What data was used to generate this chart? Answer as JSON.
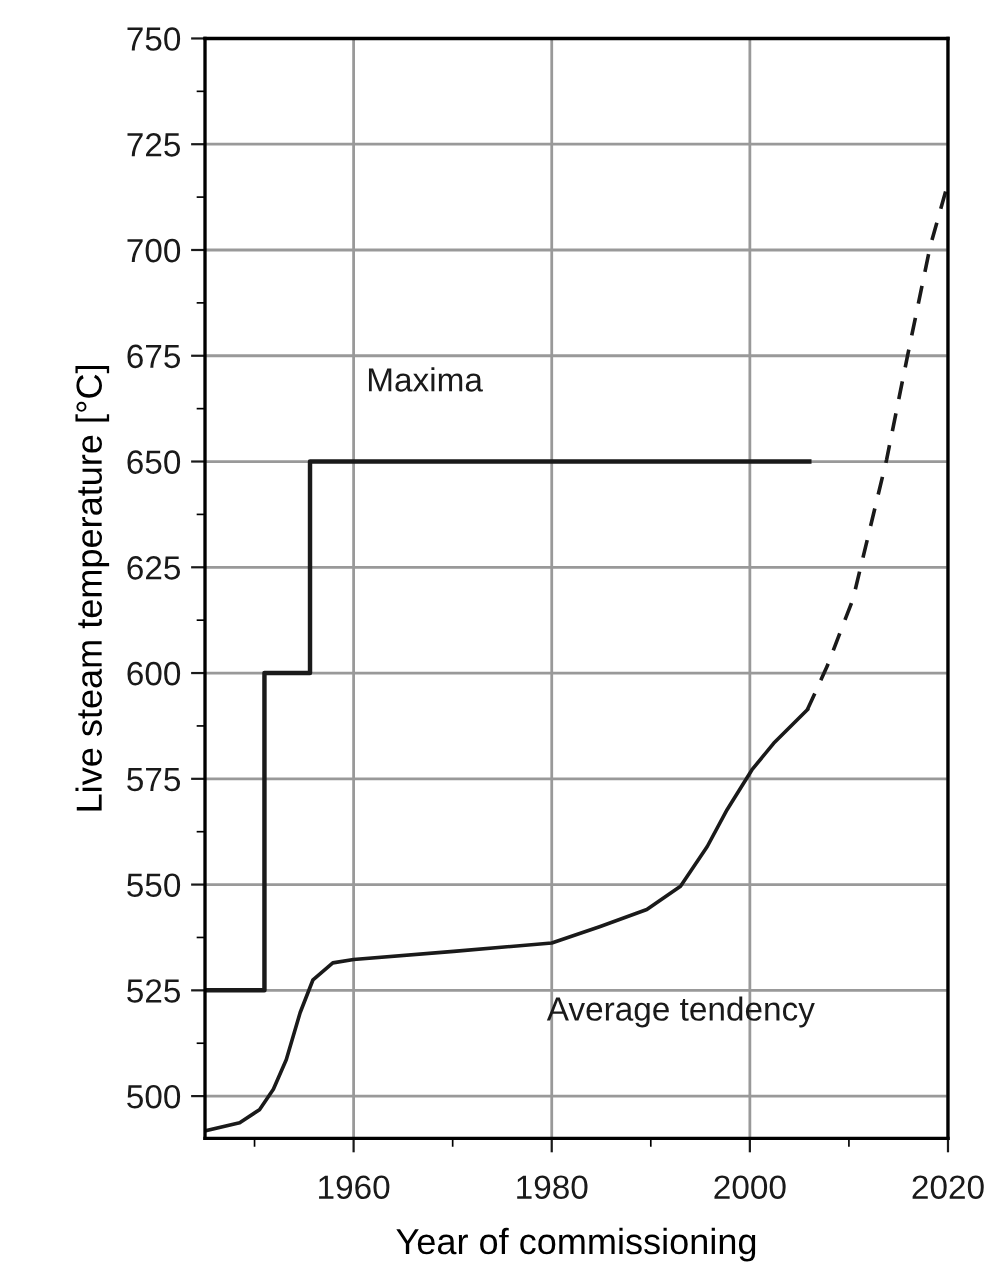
{
  "chart_data": {
    "type": "line",
    "xlabel": "Year of commissioning",
    "ylabel": "Live steam temperature [°C]",
    "xlim": [
      1945,
      2020
    ],
    "xticks": [
      1960,
      1980,
      2000,
      2020
    ],
    "ylim": [
      490,
      750
    ],
    "yticks": [
      500,
      525,
      550,
      575,
      600,
      625,
      650,
      675,
      700,
      725,
      750
    ],
    "grid": true,
    "legend": false,
    "marker": "none",
    "series": [
      {
        "name": "Maxima",
        "type": "step",
        "color": "#1a1a1a",
        "line_style": "solid",
        "x": [
          1945,
          1951,
          1955.6,
          2006
        ],
        "values": [
          525,
          600,
          650,
          650
        ]
      },
      {
        "name": "Average tendency",
        "color": "#1a1a1a",
        "line_style": "solid",
        "x": [
          1945,
          1948.5,
          1950.5,
          1951.9,
          1953.2,
          1954.6,
          1955.9,
          1957.9,
          1960,
          1970.1,
          1980,
          1984.9,
          1989.6,
          1993,
          1995.7,
          1997.7,
          2000.2,
          2002.4,
          2005.8
        ],
        "values": [
          491.8,
          493.7,
          496.8,
          501.6,
          508.6,
          519.7,
          527.5,
          531.5,
          532.3,
          534.2,
          536.2,
          540.1,
          544.1,
          549.6,
          559,
          567.7,
          577.1,
          583.4,
          591.3
        ]
      },
      {
        "color": "#1a1a1a",
        "line_style": "dashed",
        "x": [
          2005.8,
          2007.8,
          2010.4,
          2013.8,
          2015.9,
          2018.2,
          2019.9
        ],
        "values": [
          591.3,
          601.6,
          617.4,
          650.4,
          674.8,
          700.8,
          715
        ]
      }
    ]
  }
}
